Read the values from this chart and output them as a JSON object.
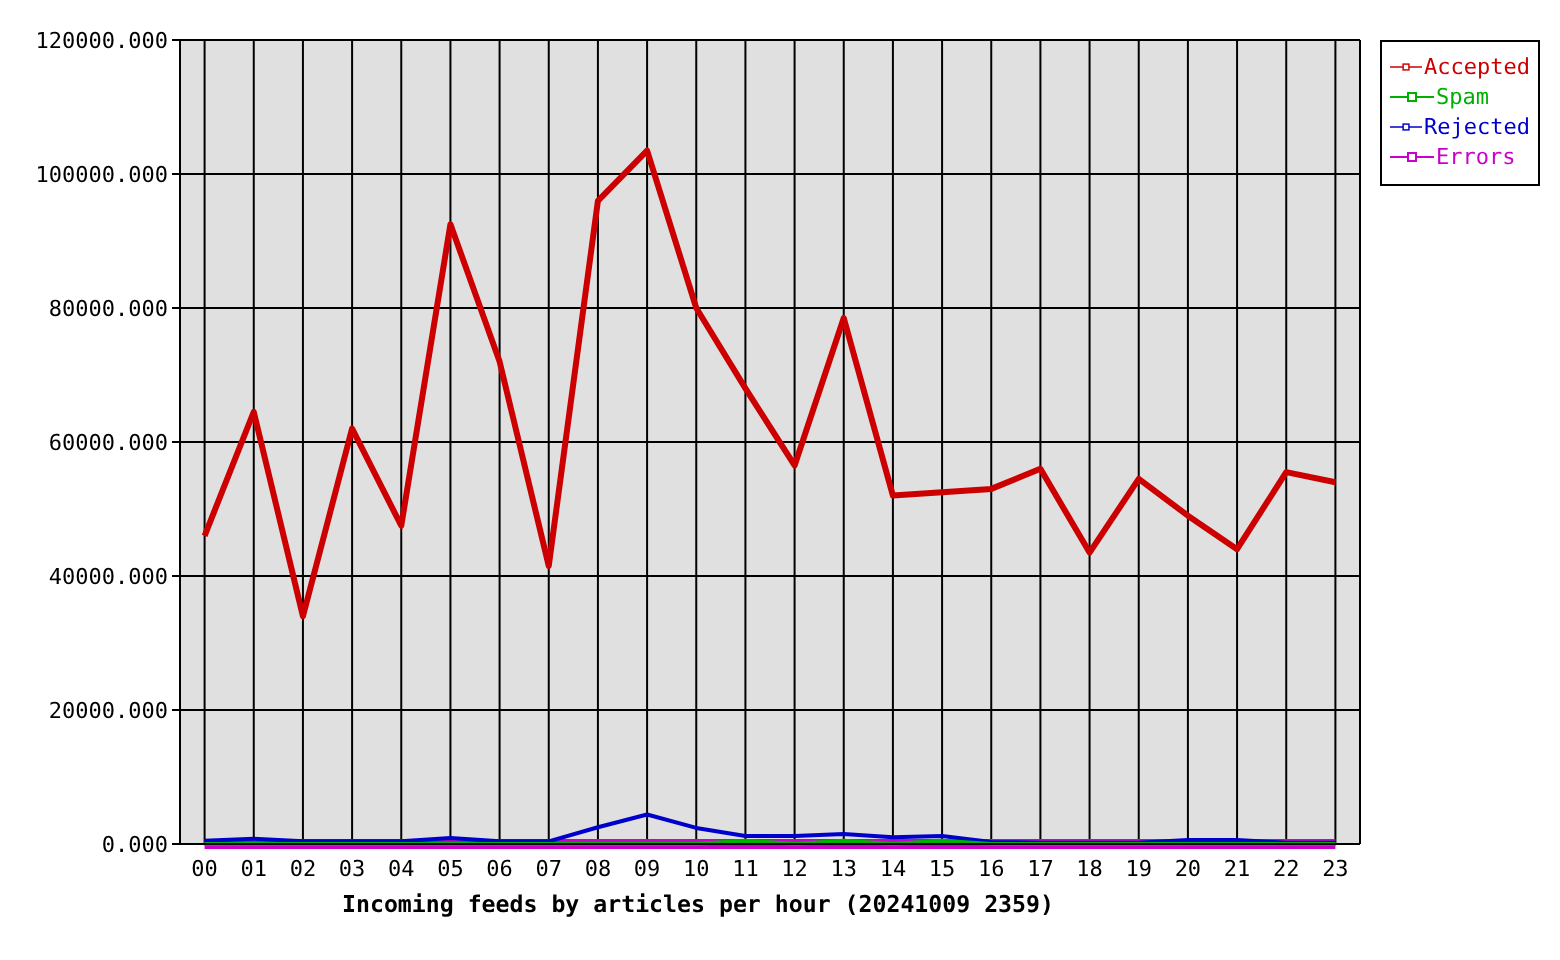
{
  "chart_data": {
    "type": "line",
    "xlabel": "Incoming feeds by articles per hour (20241009 2359)",
    "categories": [
      "00",
      "01",
      "02",
      "03",
      "04",
      "05",
      "06",
      "07",
      "08",
      "09",
      "10",
      "11",
      "12",
      "13",
      "14",
      "15",
      "16",
      "17",
      "18",
      "19",
      "20",
      "21",
      "22",
      "23"
    ],
    "series": [
      {
        "name": "Accepted",
        "color": "#cc0000",
        "values": [
          46000,
          64500,
          34000,
          62000,
          47500,
          92500,
          72000,
          41500,
          96000,
          103500,
          80000,
          68000,
          56500,
          78500,
          52000,
          52500,
          53000,
          56000,
          43500,
          54500,
          49000,
          44000,
          55500,
          54000
        ]
      },
      {
        "name": "Spam",
        "color": "#00b000",
        "values": [
          0,
          0,
          0,
          0,
          0,
          0,
          0,
          0,
          0,
          0,
          0,
          500,
          0,
          500,
          0,
          500,
          0,
          0,
          0,
          0,
          0,
          0,
          0,
          0
        ]
      },
      {
        "name": "Rejected",
        "color": "#0000cc",
        "values": [
          500,
          800,
          400,
          400,
          400,
          900,
          400,
          400,
          2500,
          4400,
          2400,
          1200,
          1200,
          1500,
          1000,
          1200,
          300,
          200,
          200,
          200,
          600,
          600,
          200,
          200
        ]
      },
      {
        "name": "Errors",
        "color": "#cc00cc",
        "values": [
          0,
          0,
          0,
          0,
          0,
          0,
          0,
          0,
          0,
          0,
          0,
          0,
          0,
          0,
          0,
          0,
          0,
          0,
          0,
          0,
          0,
          0,
          0,
          0
        ]
      }
    ],
    "ylim": [
      0,
      120000
    ],
    "yticks": [
      {
        "value": 0,
        "label": "0.000"
      },
      {
        "value": 20000,
        "label": "20000.000"
      },
      {
        "value": 40000,
        "label": "40000.000"
      },
      {
        "value": 60000,
        "label": "60000.000"
      },
      {
        "value": 80000,
        "label": "80000.000"
      },
      {
        "value": 100000,
        "label": "100000.000"
      },
      {
        "value": 120000,
        "label": "120000.000"
      }
    ],
    "grid": true,
    "legend": "top right",
    "marker": "none",
    "line_style": "solid"
  }
}
